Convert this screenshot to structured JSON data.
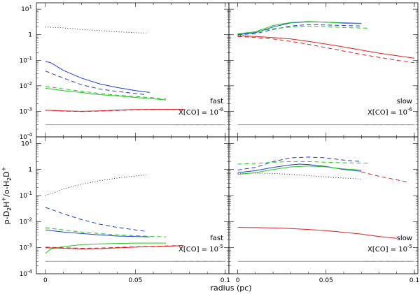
{
  "figure": {
    "xlabel": "radius (pc)",
    "ylabel_parts": [
      "p-D",
      "2",
      "H",
      "+",
      "/o-H",
      "2",
      "D",
      "+"
    ]
  },
  "x_axis": {
    "range": [
      -0.005,
      0.102
    ],
    "ticks": [
      0,
      0.05,
      0.1
    ],
    "tick_labels": [
      "0",
      "0.05",
      "0.1"
    ]
  },
  "y_axis": {
    "scale": "log",
    "range_exp": [
      -4,
      1.25
    ],
    "ticks": [
      {
        "exp": -4,
        "base": "10",
        "sup": "-4"
      },
      {
        "exp": -3,
        "base": "10",
        "sup": "-3"
      },
      {
        "exp": -2,
        "base": "10",
        "sup": "-2"
      },
      {
        "exp": -1,
        "base": "10",
        "sup": "-1"
      },
      {
        "exp": 0,
        "base": "1",
        "sup": ""
      },
      {
        "exp": 1,
        "base": "10",
        "sup": "1"
      }
    ]
  },
  "colors": {
    "blue": "#1f3fd8",
    "green": "#22c822",
    "red": "#e02020",
    "black": "#333333",
    "gray": "#999999"
  },
  "chart_data": [
    {
      "type": "line",
      "panel": "top-left",
      "label_speed": "fast",
      "label_xco_base": "X[CO] = 10",
      "label_xco_exp": "-6",
      "series": [
        {
          "name": "black-dotted",
          "color": "black",
          "dash": "1,2.5",
          "x": [
            0,
            0.01,
            0.02,
            0.03,
            0.04,
            0.05,
            0.056
          ],
          "y": [
            2.0,
            1.85,
            1.6,
            1.45,
            1.3,
            1.2,
            1.15
          ]
        },
        {
          "name": "blue-solid",
          "color": "blue",
          "dash": "",
          "x": [
            0,
            0.003,
            0.01,
            0.02,
            0.03,
            0.04,
            0.05,
            0.058
          ],
          "y": [
            0.09,
            0.08,
            0.04,
            0.02,
            0.012,
            0.0085,
            0.0065,
            0.0055
          ]
        },
        {
          "name": "blue-dashed",
          "color": "blue",
          "dash": "6,4",
          "x": [
            0,
            0.01,
            0.02,
            0.03,
            0.04,
            0.05,
            0.056
          ],
          "y": [
            0.038,
            0.02,
            0.011,
            0.0075,
            0.006,
            0.005,
            0.0045
          ]
        },
        {
          "name": "green-solid",
          "color": "green",
          "dash": "",
          "x": [
            0,
            0.01,
            0.02,
            0.03,
            0.04,
            0.05,
            0.06,
            0.067
          ],
          "y": [
            0.008,
            0.0065,
            0.0055,
            0.0045,
            0.004,
            0.0035,
            0.0031,
            0.0028
          ]
        },
        {
          "name": "green-dashed",
          "color": "green",
          "dash": "6,4",
          "x": [
            0,
            0.01,
            0.02,
            0.03,
            0.04,
            0.05,
            0.06,
            0.067
          ],
          "y": [
            0.0095,
            0.0075,
            0.0062,
            0.005,
            0.0043,
            0.0038,
            0.0034,
            0.003
          ]
        },
        {
          "name": "red-solid",
          "color": "red",
          "dash": "",
          "x": [
            0,
            0.01,
            0.02,
            0.03,
            0.04,
            0.05,
            0.06,
            0.07,
            0.077
          ],
          "y": [
            0.0011,
            0.00105,
            0.001,
            0.00105,
            0.00112,
            0.00118,
            0.0012,
            0.0012,
            0.0012
          ]
        },
        {
          "name": "red-dashed",
          "color": "red",
          "dash": "6,4",
          "x": [
            0,
            0.01,
            0.02,
            0.03,
            0.04,
            0.05,
            0.06,
            0.07,
            0.077
          ],
          "y": [
            0.0011,
            0.00102,
            0.00098,
            0.00102,
            0.00108,
            0.00115,
            0.00118,
            0.00118,
            0.00118
          ]
        },
        {
          "name": "gray-solid",
          "color": "gray",
          "dash": "",
          "x": [
            0,
            0.1
          ],
          "y": [
            0.0003,
            0.0003
          ]
        },
        {
          "name": "gray-dashed",
          "color": "gray",
          "dash": "6,4",
          "x": [
            0.072,
            0.1
          ],
          "y": [
            0.0003,
            0.0003
          ]
        }
      ]
    },
    {
      "type": "line",
      "panel": "top-right",
      "label_speed": "slow",
      "label_xco_base": "X[CO] = 10",
      "label_xco_exp": "-6",
      "series": [
        {
          "name": "black-dotted",
          "color": "black",
          "dash": "1,2.5",
          "x": [
            0,
            0.005,
            0.01
          ],
          "y": [
            0.95,
            0.9,
            0.85
          ]
        },
        {
          "name": "blue-solid",
          "color": "blue",
          "dash": "",
          "x": [
            0,
            0.01,
            0.02,
            0.03,
            0.04,
            0.05,
            0.06,
            0.07
          ],
          "y": [
            1.0,
            1.2,
            2.0,
            2.9,
            3.2,
            3.1,
            2.9,
            2.8
          ]
        },
        {
          "name": "blue-dashed",
          "color": "blue",
          "dash": "6,4",
          "x": [
            0,
            0.01,
            0.02,
            0.03,
            0.04,
            0.05,
            0.06,
            0.07
          ],
          "y": [
            1.0,
            1.1,
            1.6,
            2.2,
            2.5,
            2.4,
            2.3,
            2.2
          ]
        },
        {
          "name": "green-solid",
          "color": "green",
          "dash": "",
          "x": [
            0,
            0.01,
            0.02,
            0.03,
            0.04,
            0.05,
            0.06,
            0.07
          ],
          "y": [
            1.05,
            1.3,
            2.3,
            3.0,
            3.3,
            3.1,
            2.8,
            2.7
          ]
        },
        {
          "name": "green-dashed",
          "color": "green",
          "dash": "6,4",
          "x": [
            0,
            0.01,
            0.02,
            0.03,
            0.04,
            0.05,
            0.06,
            0.075
          ],
          "y": [
            1.1,
            1.3,
            1.7,
            2.0,
            2.2,
            2.1,
            1.9,
            1.8
          ]
        },
        {
          "name": "red-solid",
          "color": "red",
          "dash": "",
          "x": [
            0,
            0.01,
            0.02,
            0.03,
            0.04,
            0.05,
            0.06,
            0.07,
            0.08,
            0.09,
            0.1
          ],
          "y": [
            0.9,
            0.85,
            0.78,
            0.68,
            0.55,
            0.43,
            0.33,
            0.25,
            0.19,
            0.15,
            0.12
          ]
        },
        {
          "name": "red-dashed",
          "color": "red",
          "dash": "6,4",
          "x": [
            0,
            0.01,
            0.02,
            0.03,
            0.04,
            0.05,
            0.06,
            0.07,
            0.08,
            0.09,
            0.1
          ],
          "y": [
            0.85,
            0.78,
            0.68,
            0.55,
            0.42,
            0.31,
            0.23,
            0.17,
            0.13,
            0.1,
            0.08
          ]
        },
        {
          "name": "gray-solid",
          "color": "gray",
          "dash": "",
          "x": [
            0,
            0.1
          ],
          "y": [
            0.0003,
            0.0003
          ]
        },
        {
          "name": "gray-dashed",
          "color": "gray",
          "dash": "6,4",
          "x": [
            0.072,
            0.1
          ],
          "y": [
            0.0003,
            0.0003
          ]
        }
      ]
    },
    {
      "type": "line",
      "panel": "bottom-left",
      "label_speed": "fast",
      "label_xco_base": "X[CO] = 10",
      "label_xco_exp": "-5",
      "series": [
        {
          "name": "black-dotted",
          "color": "black",
          "dash": "1,2.5",
          "x": [
            0,
            0.005,
            0.01,
            0.02,
            0.03,
            0.04,
            0.05,
            0.056
          ],
          "y": [
            0.1,
            0.13,
            0.18,
            0.27,
            0.37,
            0.47,
            0.56,
            0.62
          ]
        },
        {
          "name": "blue-dashed",
          "color": "blue",
          "dash": "6,4",
          "x": [
            0,
            0.01,
            0.02,
            0.03,
            0.04,
            0.05,
            0.056
          ],
          "y": [
            0.035,
            0.02,
            0.012,
            0.008,
            0.006,
            0.0048,
            0.0042
          ]
        },
        {
          "name": "blue-solid",
          "color": "blue",
          "dash": "",
          "x": [
            0,
            0.01,
            0.02,
            0.03,
            0.04,
            0.05,
            0.058
          ],
          "y": [
            0.0048,
            0.004,
            0.0035,
            0.0031,
            0.0028,
            0.0027,
            0.0026
          ]
        },
        {
          "name": "green-dashed",
          "color": "green",
          "dash": "6,4",
          "x": [
            0,
            0.01,
            0.02,
            0.03,
            0.04,
            0.05,
            0.06,
            0.067
          ],
          "y": [
            0.0058,
            0.0048,
            0.004,
            0.0035,
            0.0031,
            0.0029,
            0.0027,
            0.0026
          ]
        },
        {
          "name": "green-solid",
          "color": "green",
          "dash": "",
          "x": [
            0,
            0.003,
            0.01,
            0.02,
            0.03,
            0.04,
            0.05,
            0.06,
            0.067
          ],
          "y": [
            0.0006,
            0.0009,
            0.0011,
            0.0013,
            0.0014,
            0.00145,
            0.0015,
            0.0015,
            0.0015
          ]
        },
        {
          "name": "red-solid",
          "color": "red",
          "dash": "",
          "x": [
            0,
            0.01,
            0.02,
            0.03,
            0.04,
            0.05,
            0.06,
            0.07,
            0.077
          ],
          "y": [
            0.001,
            0.00095,
            0.0009,
            0.00092,
            0.00098,
            0.00105,
            0.0011,
            0.00115,
            0.0012
          ]
        },
        {
          "name": "red-dashed",
          "color": "red",
          "dash": "6,4",
          "x": [
            0,
            0.01,
            0.02,
            0.03,
            0.04,
            0.05,
            0.06,
            0.07,
            0.077
          ],
          "y": [
            0.00105,
            0.001,
            0.00095,
            0.00097,
            0.00102,
            0.00108,
            0.00112,
            0.00118,
            0.00122
          ]
        },
        {
          "name": "gray-solid",
          "color": "gray",
          "dash": "",
          "x": [
            0,
            0.1
          ],
          "y": [
            0.0003,
            0.0003
          ]
        },
        {
          "name": "gray-dashed",
          "color": "gray",
          "dash": "6,4",
          "x": [
            0.072,
            0.1
          ],
          "y": [
            0.0003,
            0.0003
          ]
        }
      ]
    },
    {
      "type": "line",
      "panel": "bottom-right",
      "label_speed": "slow",
      "label_xco_base": "X[CO] = 10",
      "label_xco_exp": "-5",
      "series": [
        {
          "name": "black-dotted",
          "color": "black",
          "dash": "1,2.5",
          "x": [
            0,
            0.01,
            0.02,
            0.03,
            0.04,
            0.05,
            0.06,
            0.07
          ],
          "y": [
            0.7,
            0.72,
            0.7,
            0.65,
            0.58,
            0.52,
            0.47,
            0.43
          ]
        },
        {
          "name": "blue-solid",
          "color": "blue",
          "dash": "",
          "x": [
            0,
            0.01,
            0.02,
            0.03,
            0.035,
            0.04,
            0.05,
            0.06,
            0.07
          ],
          "y": [
            0.75,
            0.9,
            1.2,
            1.5,
            1.6,
            1.55,
            1.3,
            1.0,
            0.85
          ]
        },
        {
          "name": "blue-dashed",
          "color": "blue",
          "dash": "6,4",
          "x": [
            0,
            0.01,
            0.02,
            0.03,
            0.04,
            0.05,
            0.06,
            0.07
          ],
          "y": [
            0.95,
            1.2,
            2.0,
            2.8,
            3.0,
            2.8,
            2.3,
            2.0
          ]
        },
        {
          "name": "green-solid",
          "color": "green",
          "dash": "",
          "x": [
            0,
            0.01,
            0.02,
            0.03,
            0.04,
            0.05,
            0.06,
            0.07
          ],
          "y": [
            0.65,
            0.75,
            1.0,
            1.25,
            1.35,
            1.25,
            1.05,
            0.95
          ]
        },
        {
          "name": "green-dashed",
          "color": "green",
          "dash": "6,4",
          "x": [
            0,
            0.01,
            0.02,
            0.03,
            0.04,
            0.05,
            0.06,
            0.075
          ],
          "y": [
            1.6,
            1.7,
            1.9,
            2.0,
            2.0,
            1.9,
            1.8,
            1.75
          ]
        },
        {
          "name": "red-solid",
          "color": "red",
          "dash": "",
          "x": [
            0,
            0.01,
            0.02,
            0.03,
            0.04,
            0.05,
            0.06,
            0.07,
            0.08,
            0.09
          ],
          "y": [
            0.006,
            0.0059,
            0.0057,
            0.0054,
            0.005,
            0.0045,
            0.0039,
            0.0033,
            0.0027,
            0.0023
          ]
        },
        {
          "name": "red-dashed",
          "color": "red",
          "dash": "6,4",
          "x": [
            0.07,
            0.08,
            0.09,
            0.097
          ],
          "y": [
            0.8,
            0.55,
            0.4,
            0.32
          ]
        },
        {
          "name": "gray-solid",
          "color": "gray",
          "dash": "",
          "x": [
            0,
            0.1
          ],
          "y": [
            0.0003,
            0.0003
          ]
        },
        {
          "name": "gray-dashed",
          "color": "gray",
          "dash": "6,4",
          "x": [
            0.072,
            0.1
          ],
          "y": [
            0.0003,
            0.0003
          ]
        }
      ]
    }
  ]
}
